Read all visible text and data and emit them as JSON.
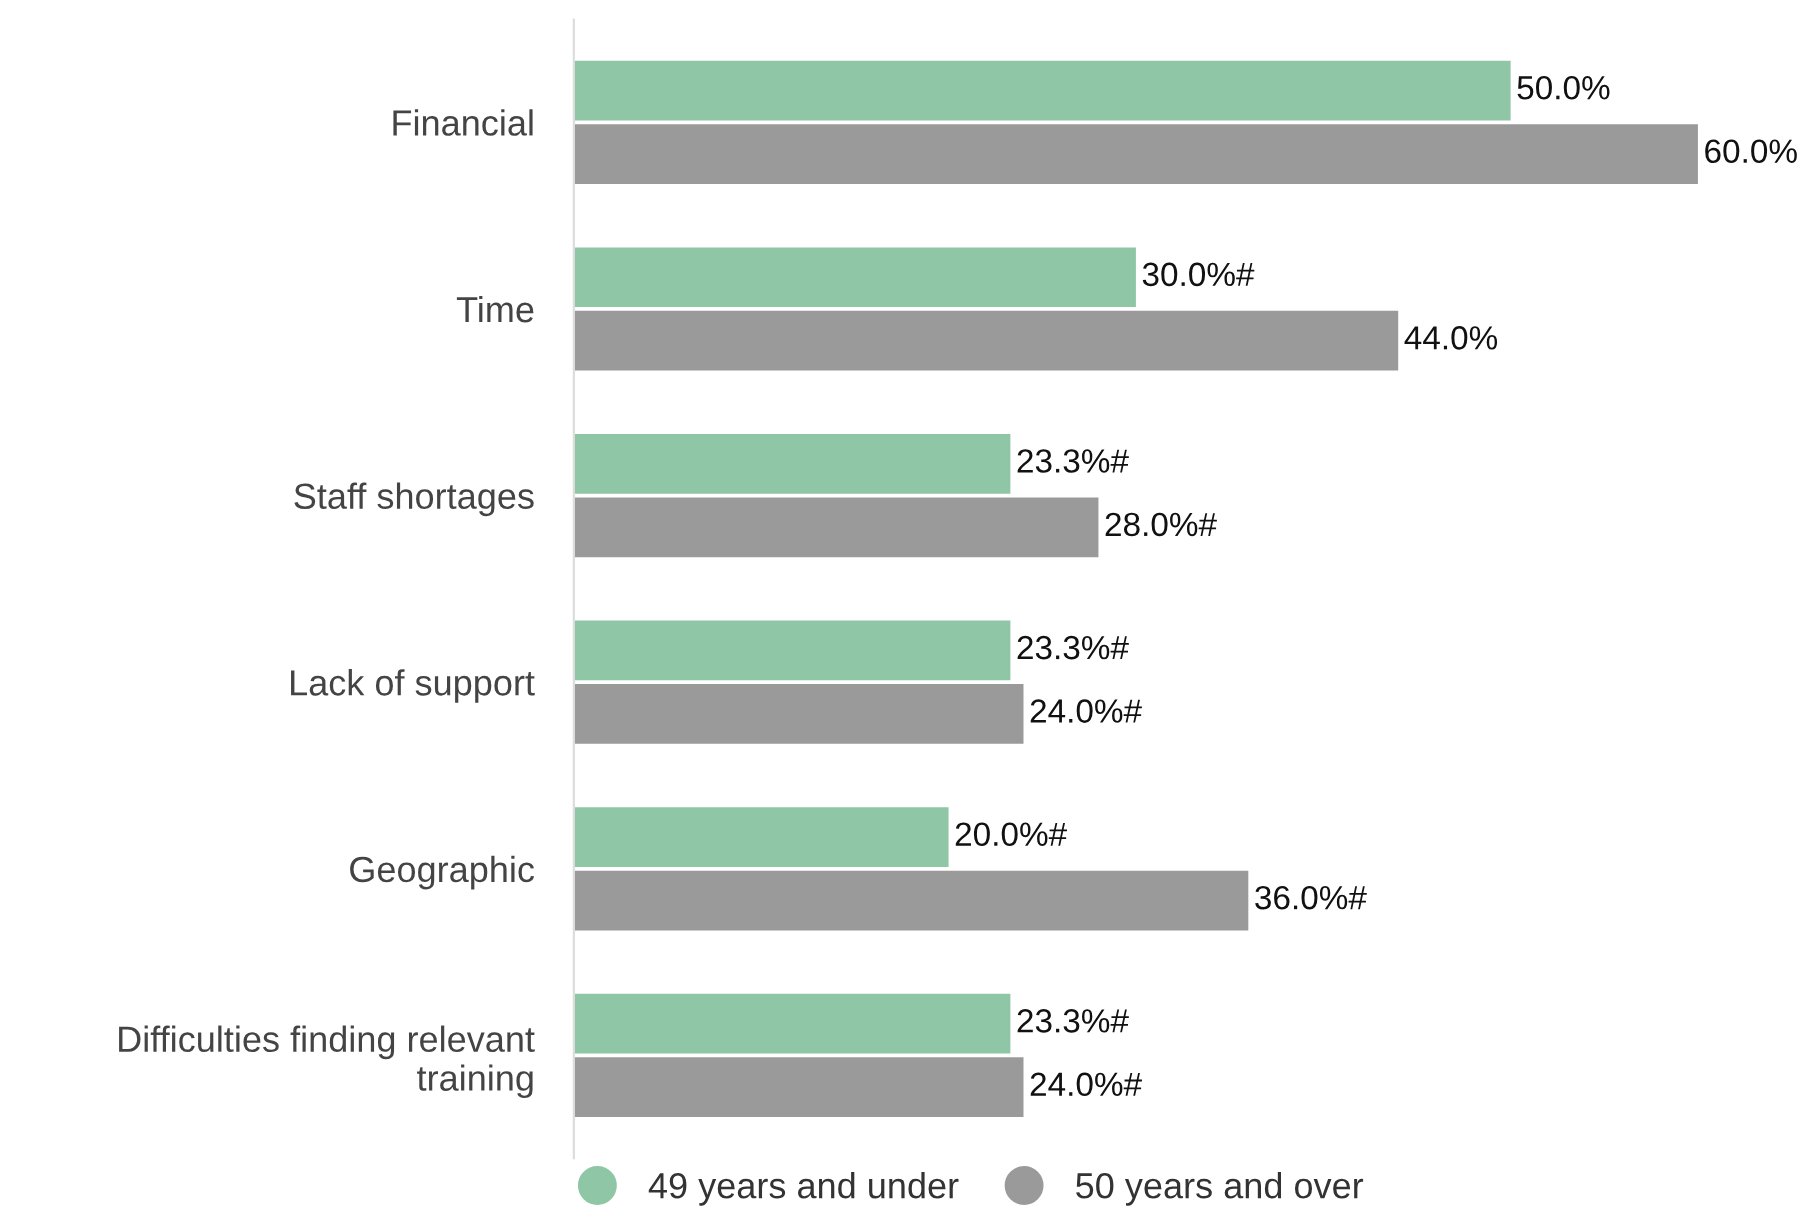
{
  "chart_data": {
    "type": "bar",
    "orientation": "horizontal",
    "categories": [
      "Financial",
      "Time",
      "Staff shortages",
      "Lack of support",
      "Geographic",
      "Difficulties finding relevant training"
    ],
    "series": [
      {
        "name": "49 years and under",
        "color": "#8fc6a5",
        "values": [
          50.0,
          30.0,
          23.3,
          23.3,
          20.0,
          23.3
        ],
        "value_labels": [
          "50.0%",
          "30.0%#",
          "23.3%#",
          "23.3%#",
          "20.0%#",
          "23.3%#"
        ]
      },
      {
        "name": "50 years and over",
        "color": "#9a9a9a",
        "values": [
          60.0,
          44.0,
          28.0,
          24.0,
          36.0,
          24.0
        ],
        "value_labels": [
          "60.0%",
          "44.0%",
          "28.0%#",
          "24.0%#",
          "36.0%#",
          "24.0%#"
        ]
      }
    ],
    "xlim": [
      0,
      60
    ],
    "tick_labels": "y",
    "grid": false,
    "legend": "bottom",
    "marker": "circle"
  }
}
